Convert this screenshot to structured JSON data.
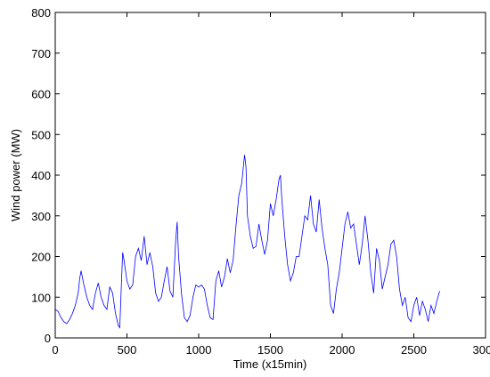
{
  "chart_data": {
    "type": "line",
    "xlabel": "Time (x15min)",
    "ylabel": "Wind power (MW)",
    "x": [
      0,
      20,
      40,
      60,
      80,
      100,
      120,
      140,
      160,
      170,
      180,
      200,
      220,
      240,
      260,
      280,
      300,
      320,
      340,
      360,
      380,
      400,
      420,
      440,
      450,
      460,
      470,
      480,
      500,
      520,
      540,
      560,
      580,
      600,
      620,
      640,
      660,
      680,
      700,
      720,
      740,
      760,
      780,
      800,
      820,
      840,
      850,
      860,
      880,
      900,
      920,
      940,
      960,
      980,
      1000,
      1020,
      1040,
      1060,
      1080,
      1100,
      1120,
      1140,
      1160,
      1180,
      1200,
      1220,
      1240,
      1260,
      1280,
      1300,
      1320,
      1330,
      1340,
      1360,
      1380,
      1400,
      1420,
      1440,
      1460,
      1480,
      1500,
      1520,
      1540,
      1560,
      1570,
      1580,
      1600,
      1620,
      1640,
      1660,
      1680,
      1700,
      1720,
      1740,
      1760,
      1780,
      1800,
      1820,
      1840,
      1860,
      1880,
      1900,
      1920,
      1940,
      1960,
      1980,
      2000,
      2020,
      2040,
      2060,
      2080,
      2100,
      2120,
      2140,
      2160,
      2180,
      2200,
      2220,
      2240,
      2260,
      2280,
      2300,
      2320,
      2340,
      2360,
      2380,
      2400,
      2420,
      2440,
      2460,
      2480,
      2500,
      2520,
      2540,
      2560,
      2580,
      2600,
      2620,
      2640,
      2660,
      2680
    ],
    "series": [
      {
        "color": "#0000ff",
        "values": [
          70,
          65,
          50,
          40,
          35,
          45,
          60,
          80,
          110,
          145,
          165,
          130,
          100,
          80,
          70,
          110,
          135,
          100,
          80,
          70,
          125,
          110,
          60,
          30,
          25,
          120,
          210,
          190,
          140,
          120,
          130,
          200,
          220,
          190,
          250,
          180,
          210,
          175,
          110,
          90,
          100,
          140,
          175,
          115,
          100,
          240,
          285,
          200,
          110,
          50,
          40,
          55,
          100,
          130,
          125,
          130,
          120,
          80,
          50,
          45,
          140,
          165,
          125,
          150,
          195,
          160,
          190,
          275,
          350,
          380,
          450,
          420,
          300,
          250,
          220,
          225,
          280,
          240,
          205,
          240,
          330,
          300,
          340,
          390,
          400,
          340,
          250,
          180,
          140,
          160,
          200,
          200,
          250,
          300,
          290,
          350,
          280,
          260,
          340,
          270,
          220,
          180,
          80,
          60,
          120,
          160,
          220,
          280,
          310,
          270,
          280,
          230,
          180,
          230,
          300,
          240,
          160,
          110,
          220,
          190,
          120,
          150,
          180,
          230,
          240,
          200,
          120,
          80,
          100,
          50,
          40,
          80,
          100,
          55,
          90,
          70,
          40,
          80,
          60,
          90,
          115
        ]
      }
    ],
    "xlim": [
      0,
      3000
    ],
    "xticks": [
      0,
      500,
      1000,
      1500,
      2000,
      2500,
      3000
    ],
    "ylim": [
      0,
      800
    ],
    "yticks": [
      0,
      100,
      200,
      300,
      400,
      500,
      600,
      700,
      800
    ]
  }
}
